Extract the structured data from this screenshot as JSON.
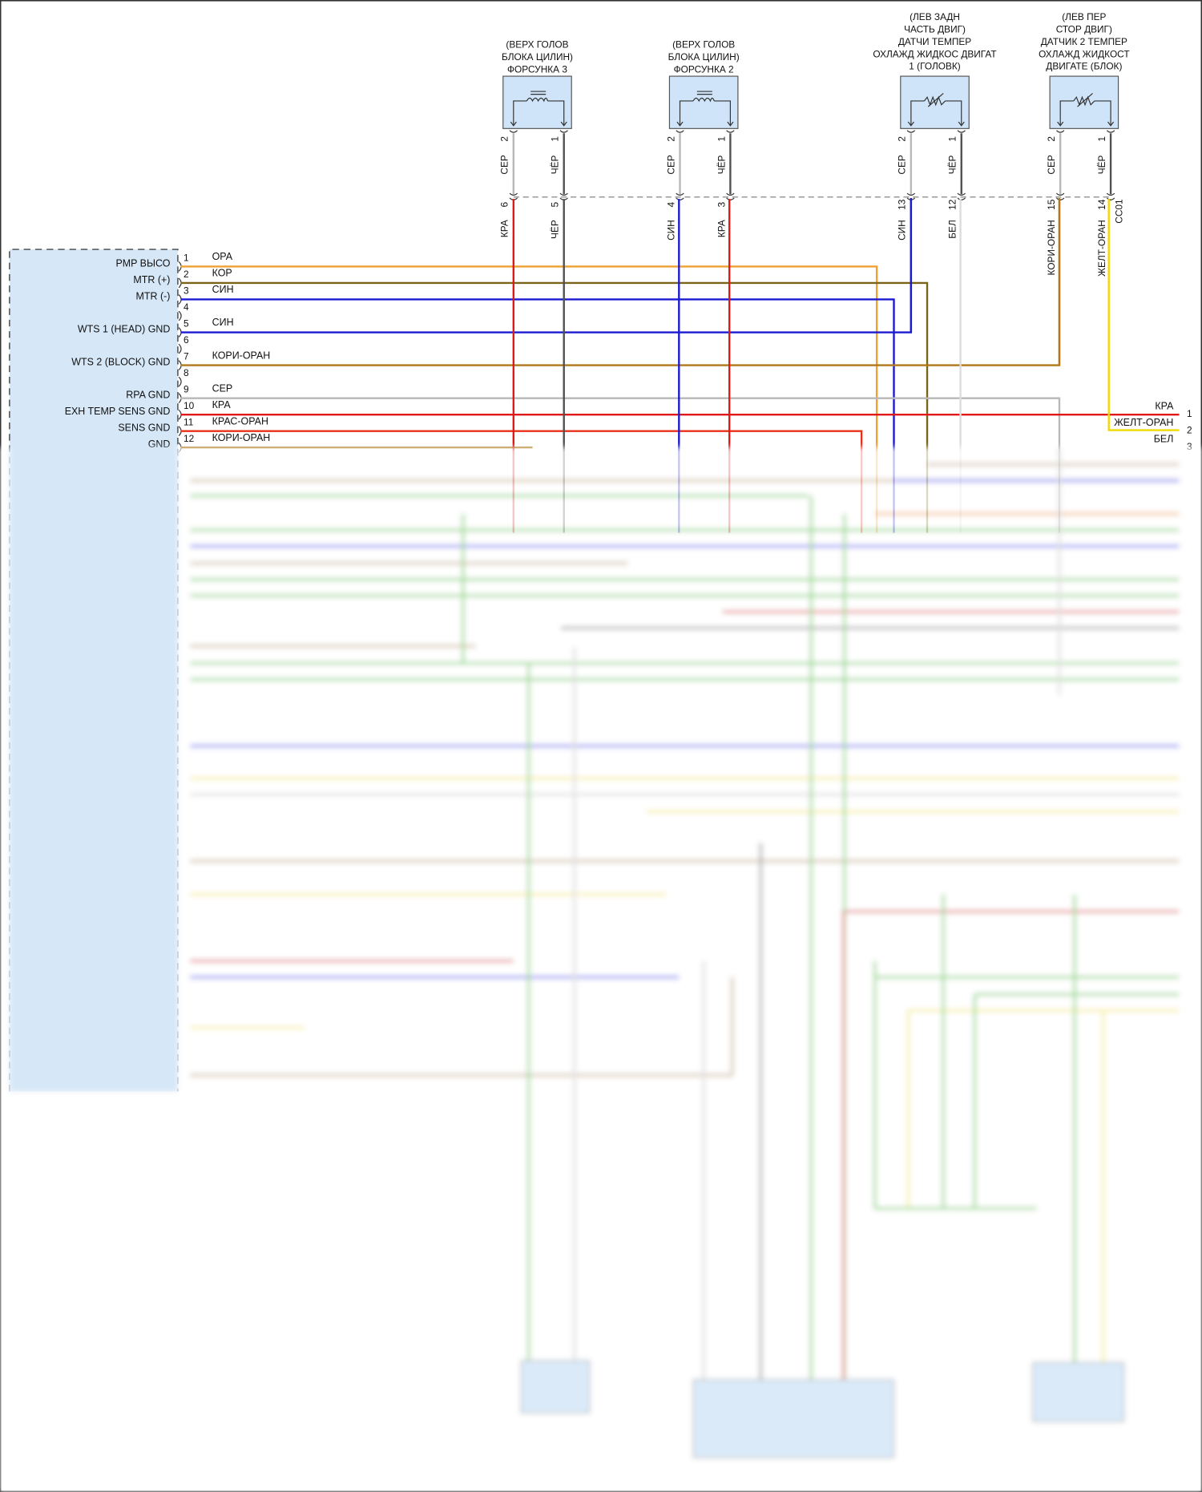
{
  "colors": {
    "ОРА": "#f0a030",
    "КОР": "#7a6418",
    "СИН": "#1a1ad0",
    "СЕР": "#b8b8b8",
    "КРА": "#e01818",
    "КРАС-ОРАН": "#e83018",
    "КОРИ-ОРАН": "#b07818",
    "ЧЁР": "#505050",
    "БЕЛ": "#dcdcdc",
    "ЖЕЛТ-ОРАН": "#f0d800",
    "connector_fill": "#d6e8f8",
    "component_fill": "#cfe4f8"
  },
  "components": [
    {
      "title": [
        "(ВЕРХ ГОЛОВ",
        "БЛОКА ЦИЛИН)",
        "ФОРСУНКА 3"
      ],
      "symbol": "coil-icon",
      "pins": [
        {
          "num": "2",
          "color": "СЕР"
        },
        {
          "num": "1",
          "color": "ЧЁР"
        }
      ],
      "cc01": [
        {
          "num": "6",
          "color": "КРА"
        },
        {
          "num": "5",
          "color": "ЧЁР"
        }
      ]
    },
    {
      "title": [
        "(ВЕРХ ГОЛОВ",
        "БЛОКА ЦИЛИН)",
        "ФОРСУНКА 2"
      ],
      "symbol": "coil-icon",
      "pins": [
        {
          "num": "2",
          "color": "СЕР"
        },
        {
          "num": "1",
          "color": "ЧЁР"
        }
      ],
      "cc01": [
        {
          "num": "4",
          "color": "СИН"
        },
        {
          "num": "3",
          "color": "КРА"
        }
      ]
    },
    {
      "title": [
        "(ЛЕВ ЗАДН",
        "ЧАСТЬ ДВИГ)",
        "ДАТЧИ ТЕМПЕР",
        "ОХЛАЖД ЖИДКОС ДВИГАТ",
        "1 (ГОЛОВК)"
      ],
      "symbol": "thermistor-icon",
      "pins": [
        {
          "num": "2",
          "color": "СЕР"
        },
        {
          "num": "1",
          "color": "ЧЁР"
        }
      ],
      "cc01": [
        {
          "num": "13",
          "color": "СИН"
        },
        {
          "num": "12",
          "color": "БЕЛ"
        }
      ]
    },
    {
      "title": [
        "(ЛЕВ ПЕР",
        "СТОР ДВИГ)",
        "ДАТЧИК 2 ТЕМПЕР",
        "ОХЛАЖД ЖИДКОСТ",
        "ДВИГАТЕ (БЛОК)"
      ],
      "symbol": "thermistor-icon",
      "pins": [
        {
          "num": "2",
          "color": "СЕР"
        },
        {
          "num": "1",
          "color": "ЧЁР"
        }
      ],
      "cc01": [
        {
          "num": "15",
          "color": "КОРИ-ОРАН"
        },
        {
          "num": "14",
          "color": "ЖЕЛТ-ОРАН"
        }
      ]
    }
  ],
  "cc01_label": "CC01",
  "ecm_pins": [
    {
      "pin": "1",
      "signal": "PMP ВЫСО",
      "wire": "ОРА"
    },
    {
      "pin": "2",
      "signal": "MTR (+)",
      "wire": "КОР"
    },
    {
      "pin": "3",
      "signal": "MTR (-)",
      "wire": "СИН"
    },
    {
      "pin": "4",
      "signal": "",
      "wire": ""
    },
    {
      "pin": "5",
      "signal": "WTS 1 (HEAD) GND",
      "wire": "СИН"
    },
    {
      "pin": "6",
      "signal": "",
      "wire": ""
    },
    {
      "pin": "7",
      "signal": "WTS 2 (BLOCK) GND",
      "wire": "КОРИ-ОРАН"
    },
    {
      "pin": "8",
      "signal": "",
      "wire": ""
    },
    {
      "pin": "9",
      "signal": "RPA GND",
      "wire": "СЕР"
    },
    {
      "pin": "10",
      "signal": "EXH TEMP SENS GND",
      "wire": "КРА"
    },
    {
      "pin": "11",
      "signal": "SENS GND",
      "wire": "КРАС-ОРАН"
    },
    {
      "pin": "12",
      "signal": "GND",
      "wire": "КОРИ-ОРАН"
    }
  ],
  "right_connector": [
    {
      "pin": "1",
      "wire": "КРА"
    },
    {
      "pin": "2",
      "wire": "ЖЕЛТ-ОРАН"
    },
    {
      "pin": "3",
      "wire": "БЕЛ"
    }
  ]
}
